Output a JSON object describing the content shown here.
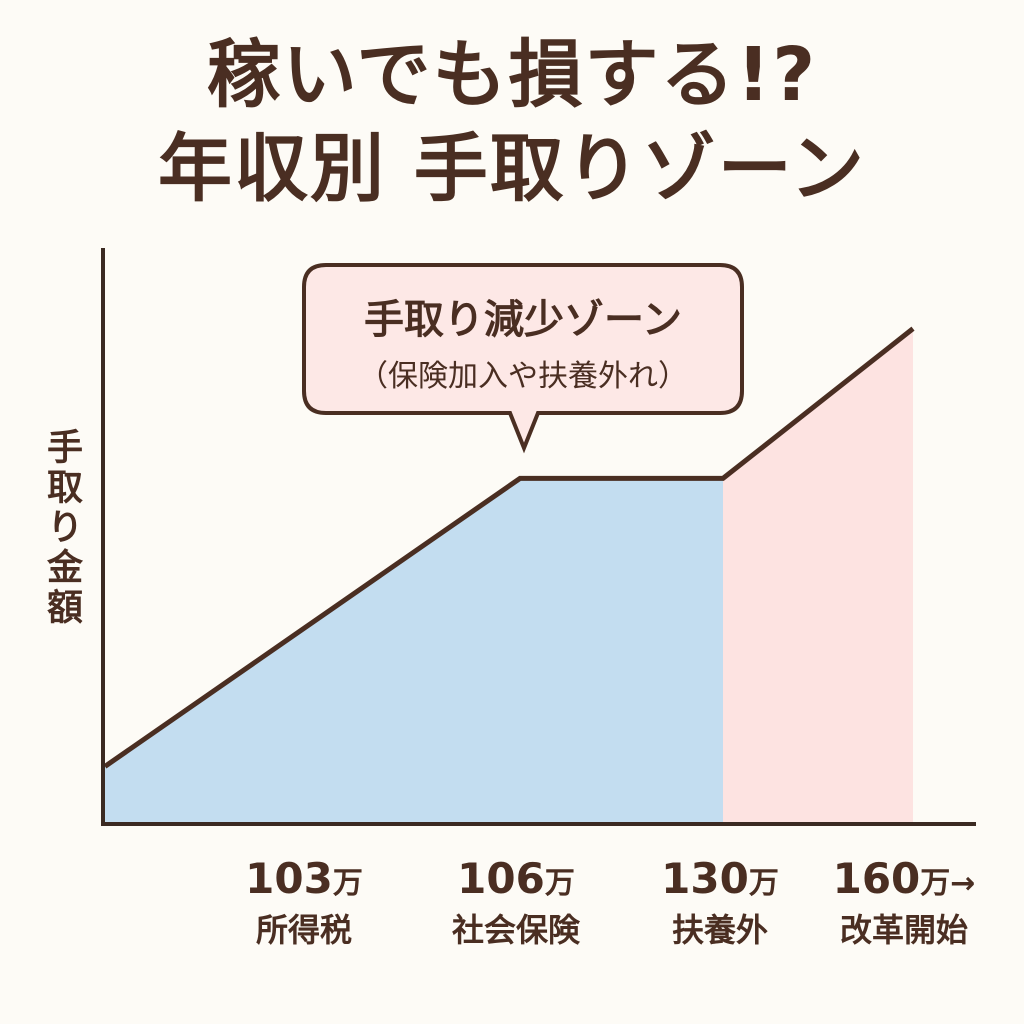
{
  "chart_data": {
    "type": "area",
    "title_lines": [
      "稼いでも損する!?",
      "年収別 手取りゾーン"
    ],
    "ylabel": "手取り金額",
    "x": [
      0,
      106,
      130,
      160
    ],
    "y": [
      0.1,
      0.6,
      0.6,
      0.86
    ],
    "tick_labels": [
      {
        "value": "103",
        "unit": "万",
        "desc": "所得税"
      },
      {
        "value": "106",
        "unit": "万",
        "desc": "社会保険"
      },
      {
        "value": "130",
        "unit": "万",
        "desc": "扶養外"
      },
      {
        "value": "160",
        "unit": "万→",
        "desc": "改革開始"
      }
    ],
    "annotation": {
      "main": "手取り減少ゾーン",
      "sub": "（保険加入や扶養外れ）"
    },
    "colors": {
      "zone_blue": "#c3ddf0",
      "zone_pink": "#fde3e1",
      "line": "#4a2e22",
      "axis": "#3b2a22",
      "callout_fill": "#fde8e6"
    }
  }
}
